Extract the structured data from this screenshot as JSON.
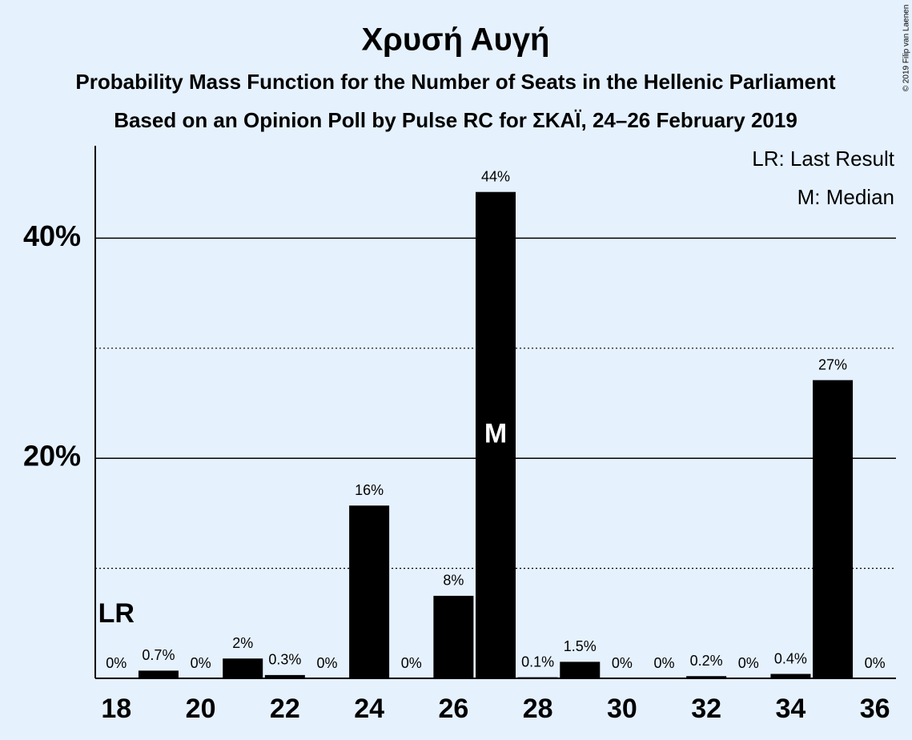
{
  "chart_data": {
    "type": "bar",
    "title": "Χρυσή Αυγή",
    "subtitle": [
      "Probability Mass Function for the Number of Seats in the Hellenic Parliament",
      "Based on an Opinion Poll by Pulse RC for ΣΚΑΪ, 24–26 February 2019"
    ],
    "x": [
      18,
      19,
      20,
      21,
      22,
      23,
      24,
      25,
      26,
      27,
      28,
      29,
      30,
      31,
      32,
      33,
      34,
      35,
      36
    ],
    "values": [
      0,
      0.7,
      0,
      1.8,
      0.3,
      0,
      15.7,
      0,
      7.5,
      44.2,
      0.1,
      1.5,
      0,
      0,
      0.2,
      0,
      0.4,
      27.1,
      0
    ],
    "value_labels": [
      "0%",
      "0.7%",
      "0%",
      "2%",
      "0.3%",
      "0%",
      "16%",
      "0%",
      "8%",
      "44%",
      "0.1%",
      "1.5%",
      "0%",
      "0%",
      "0.2%",
      "0%",
      "0.4%",
      "27%",
      "0%"
    ],
    "color": "#000000",
    "xlim": [
      17.5,
      36.5
    ],
    "xticks": [
      18,
      20,
      22,
      24,
      26,
      28,
      30,
      32,
      34,
      36
    ],
    "ylim": [
      0,
      48.4
    ],
    "yticks": [
      {
        "value": 20,
        "label": "20%"
      },
      {
        "value": 40,
        "label": "40%"
      }
    ],
    "minor_yticks": [
      10,
      30
    ],
    "grid": true,
    "last_result": {
      "label": "LR",
      "x": 18
    },
    "median": {
      "label": "M",
      "x": 27
    },
    "legend": [
      "LR: Last Result",
      "M: Median"
    ],
    "copyright": "© 2019 Filip van Laenen"
  }
}
